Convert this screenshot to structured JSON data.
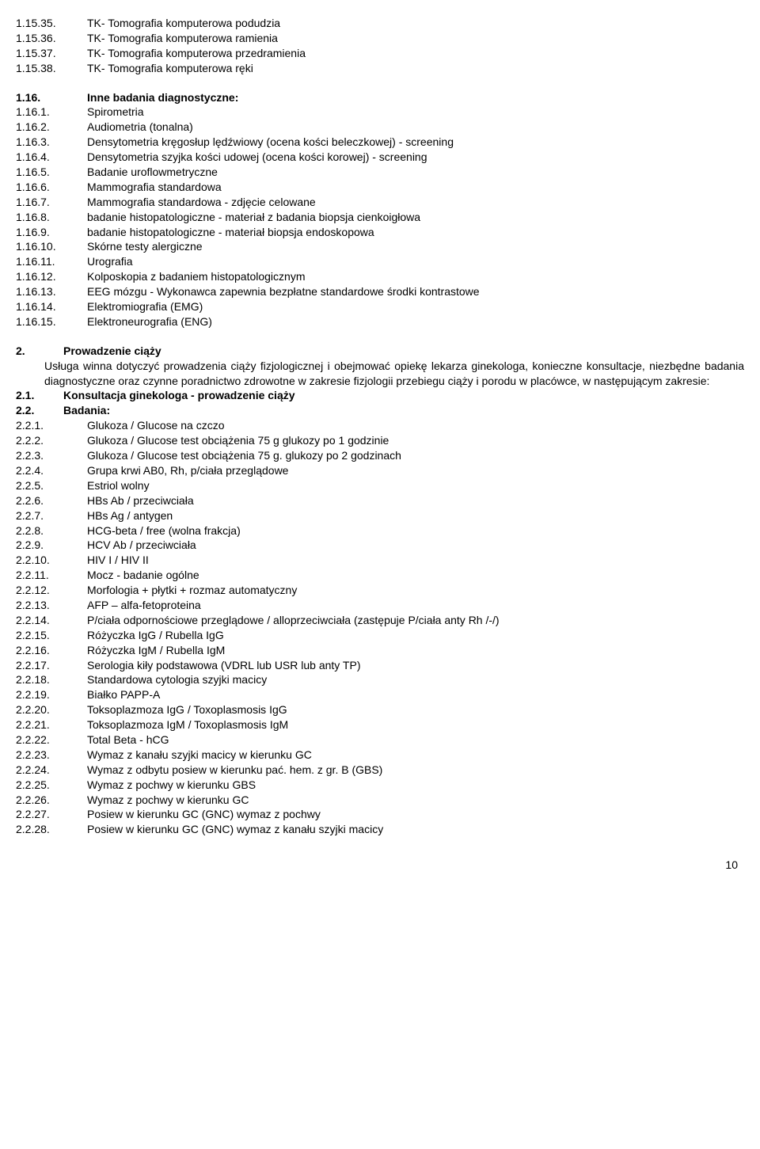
{
  "block1": [
    {
      "n": "1.15.35.",
      "t": "TK- Tomografia komputerowa podudzia"
    },
    {
      "n": "1.15.36.",
      "t": "TK- Tomografia komputerowa ramienia"
    },
    {
      "n": "1.15.37.",
      "t": "TK- Tomografia komputerowa przedramienia"
    },
    {
      "n": "1.15.38.",
      "t": "TK- Tomografia komputerowa ręki"
    }
  ],
  "section116": {
    "n": "1.16.",
    "t": "Inne badania diagnostyczne:"
  },
  "block2": [
    {
      "n": "1.16.1.",
      "t": "Spirometria"
    },
    {
      "n": "1.16.2.",
      "t": "Audiometria (tonalna)"
    },
    {
      "n": "1.16.3.",
      "t": "Densytometria kręgosłup lędźwiowy (ocena kości beleczkowej) - screening"
    },
    {
      "n": "1.16.4.",
      "t": "Densytometria szyjka kości udowej (ocena kości korowej) - screening"
    },
    {
      "n": "1.16.5.",
      "t": "Badanie uroflowmetryczne"
    },
    {
      "n": "1.16.6.",
      "t": "Mammografia standardowa"
    },
    {
      "n": "1.16.7.",
      "t": "Mammografia standardowa - zdjęcie celowane"
    },
    {
      "n": "1.16.8.",
      "t": "badanie histopatologiczne - materiał z badania biopsja cienkoigłowa"
    },
    {
      "n": "1.16.9.",
      "t": "badanie histopatologiczne - materiał biopsja endoskopowa"
    },
    {
      "n": "1.16.10.",
      "t": "Skórne testy alergiczne"
    },
    {
      "n": "1.16.11.",
      "t": "Urografia"
    },
    {
      "n": "1.16.12.",
      "t": "Kolposkopia z badaniem histopatologicznym"
    },
    {
      "n": "1.16.13.",
      "t": "EEG mózgu - Wykonawca zapewnia bezpłatne standardowe środki kontrastowe"
    },
    {
      "n": "1.16.14.",
      "t": "Elektromiografia (EMG)"
    },
    {
      "n": "1.16.15.",
      "t": "Elektroneurografia (ENG)"
    }
  ],
  "section2_head": {
    "n": "2.",
    "t": "Prowadzenie ciąży"
  },
  "section2_para": "Usługa winna dotyczyć prowadzenia ciąży fizjologicznej i obejmować opiekę lekarza ginekologa, konieczne konsultacje, niezbędne badania diagnostyczne oraz czynne poradnictwo zdrowotne w zakresie fizjologii przebiegu ciąży i porodu w placówce, w następującym zakresie:",
  "sub21": {
    "n": "2.1.",
    "t": "Konsultacja ginekologa - prowadzenie ciąży"
  },
  "sub22": {
    "n": "2.2.",
    "t": "Badania:"
  },
  "block3": [
    {
      "n": "2.2.1.",
      "t": "Glukoza / Glucose na czczo"
    },
    {
      "n": "2.2.2.",
      "t": "Glukoza / Glucose test obciążenia 75 g glukozy po 1 godzinie"
    },
    {
      "n": "2.2.3.",
      "t": "Glukoza / Glucose test obciążenia 75 g. glukozy po 2 godzinach"
    },
    {
      "n": "2.2.4.",
      "t": "Grupa krwi AB0, Rh, p/ciała przeglądowe"
    },
    {
      "n": "2.2.5.",
      "t": "Estriol wolny"
    },
    {
      "n": "2.2.6.",
      "t": "HBs Ab / przeciwciała"
    },
    {
      "n": "2.2.7.",
      "t": "HBs Ag / antygen"
    },
    {
      "n": "2.2.8.",
      "t": "HCG-beta / free (wolna frakcja)"
    },
    {
      "n": "2.2.9.",
      "t": "HCV Ab / przeciwciała"
    },
    {
      "n": "2.2.10.",
      "t": "HIV I / HIV II"
    },
    {
      "n": "2.2.11.",
      "t": "Mocz - badanie ogólne"
    },
    {
      "n": "2.2.12.",
      "t": "Morfologia + płytki + rozmaz automatyczny"
    },
    {
      "n": "2.2.13.",
      "t": "AFP – alfa-fetoproteina"
    },
    {
      "n": "2.2.14.",
      "t": "P/ciała odpornościowe przeglądowe / alloprzeciwciała (zastępuje P/ciała anty Rh /-/)"
    },
    {
      "n": "2.2.15.",
      "t": "Różyczka IgG / Rubella IgG"
    },
    {
      "n": "2.2.16.",
      "t": "Różyczka IgM / Rubella IgM"
    },
    {
      "n": "2.2.17.",
      "t": "Serologia kiły podstawowa (VDRL lub USR lub anty TP)"
    },
    {
      "n": "2.2.18.",
      "t": "Standardowa cytologia szyjki macicy"
    },
    {
      "n": "2.2.19.",
      "t": "Białko PAPP-A"
    },
    {
      "n": "2.2.20.",
      "t": "Toksoplazmoza IgG / Toxoplasmosis IgG"
    },
    {
      "n": "2.2.21.",
      "t": "Toksoplazmoza IgM / Toxoplasmosis IgM"
    },
    {
      "n": "2.2.22.",
      "t": "Total Beta - hCG"
    },
    {
      "n": "2.2.23.",
      "t": "Wymaz z kanału szyjki macicy w kierunku GC"
    },
    {
      "n": "2.2.24.",
      "t": "Wymaz z odbytu posiew w kierunku pać. hem. z gr. B (GBS)"
    },
    {
      "n": "2.2.25.",
      "t": "Wymaz z pochwy w kierunku GBS"
    },
    {
      "n": "2.2.26.",
      "t": "Wymaz z pochwy w kierunku GC"
    },
    {
      "n": "2.2.27.",
      "t": "Posiew w kierunku GC (GNC) wymaz z pochwy"
    },
    {
      "n": "2.2.28.",
      "t": "Posiew w kierunku GC (GNC) wymaz z kanału szyjki macicy"
    }
  ],
  "page_number": "10"
}
